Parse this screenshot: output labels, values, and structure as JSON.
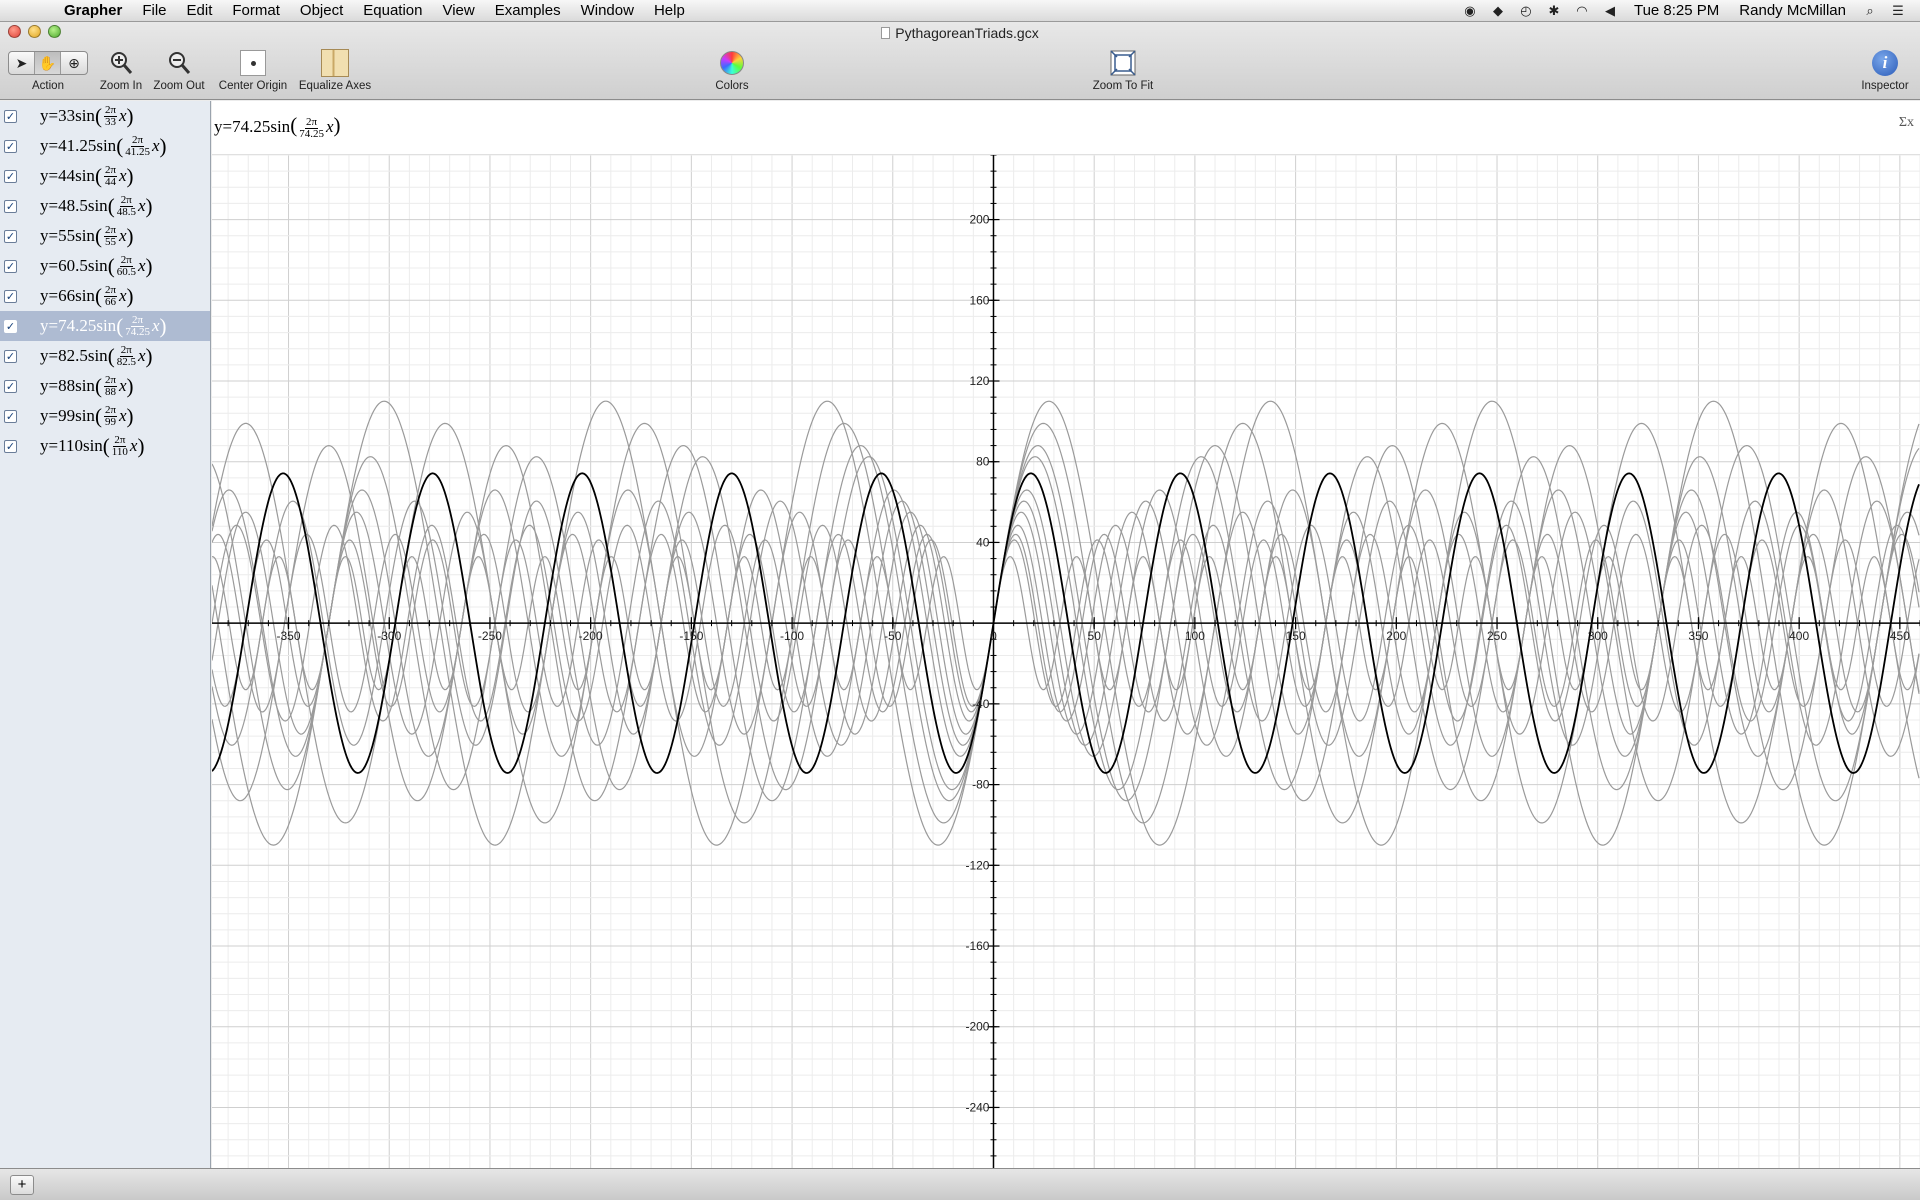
{
  "menubar": {
    "app_name": "Grapher",
    "items": [
      "File",
      "Edit",
      "Format",
      "Object",
      "Equation",
      "View",
      "Examples",
      "Window",
      "Help"
    ],
    "clock": "Tue 8:25 PM",
    "user": "Randy McMillan",
    "status_icons": [
      "creative-cloud-icon",
      "dropbox-icon",
      "time-machine-icon",
      "bluetooth-icon",
      "wifi-icon",
      "volume-icon",
      "spotlight-icon",
      "notification-center-icon"
    ]
  },
  "window": {
    "title": "PythagoreanTriads.gcx"
  },
  "toolbar": {
    "action_label": "Action",
    "zoom_in_label": "Zoom In",
    "zoom_out_label": "Zoom Out",
    "center_origin_label": "Center Origin",
    "equalize_axes_label": "Equalize Axes",
    "colors_label": "Colors",
    "zoom_to_fit_label": "Zoom To Fit",
    "inspector_label": "Inspector"
  },
  "equations": [
    {
      "prefix": "y=33sin",
      "num": "2π",
      "den": "33",
      "var": "x",
      "amplitude": 33,
      "period": 33,
      "checked": true
    },
    {
      "prefix": "y=41.25sin",
      "num": "2π",
      "den": "41.25",
      "var": "x",
      "amplitude": 41.25,
      "period": 41.25,
      "checked": true
    },
    {
      "prefix": "y=44sin",
      "num": "2π",
      "den": "44",
      "var": "x",
      "amplitude": 44,
      "period": 44,
      "checked": true
    },
    {
      "prefix": "y=48.5sin",
      "num": "2π",
      "den": "48.5",
      "var": "x",
      "amplitude": 48.5,
      "period": 48.5,
      "checked": true
    },
    {
      "prefix": "y=55sin",
      "num": "2π",
      "den": "55",
      "var": "x",
      "amplitude": 55,
      "period": 55,
      "checked": true
    },
    {
      "prefix": "y=60.5sin",
      "num": "2π",
      "den": "60.5",
      "var": "x",
      "amplitude": 60.5,
      "period": 60.5,
      "checked": true
    },
    {
      "prefix": "y=66sin",
      "num": "2π",
      "den": "66",
      "var": "x",
      "amplitude": 66,
      "period": 66,
      "checked": true
    },
    {
      "prefix": "y=74.25sin",
      "num": "2π",
      "den": "74.25",
      "var": "x",
      "amplitude": 74.25,
      "period": 74.25,
      "checked": true,
      "selected": true
    },
    {
      "prefix": "y=82.5sin",
      "num": "2π",
      "den": "82.5",
      "var": "x",
      "amplitude": 82.5,
      "period": 82.5,
      "checked": true
    },
    {
      "prefix": "y=88sin",
      "num": "2π",
      "den": "88",
      "var": "x",
      "amplitude": 88,
      "period": 88,
      "checked": true
    },
    {
      "prefix": "y=99sin",
      "num": "2π",
      "den": "99",
      "var": "x",
      "amplitude": 99,
      "period": 99,
      "checked": true
    },
    {
      "prefix": "y=110sin",
      "num": "2π",
      "den": "110",
      "var": "x",
      "amplitude": 110,
      "period": 110,
      "checked": true
    }
  ],
  "editor": {
    "prefix": "y=74.25sin",
    "num": "2π",
    "den": "74.25",
    "var": "x",
    "sigma_label": "Σx"
  },
  "chart_data": {
    "type": "line",
    "function": "y = A·sin(2πx / A)",
    "x_range": [
      -388,
      460
    ],
    "y_range": [
      -270,
      232
    ],
    "x_ticks": [
      -350,
      -300,
      -250,
      -200,
      -150,
      -100,
      -50,
      0,
      50,
      100,
      150,
      200,
      250,
      300,
      350,
      400,
      450
    ],
    "y_ticks": [
      -240,
      -200,
      -160,
      -120,
      -80,
      -40,
      40,
      80,
      120,
      160,
      200
    ],
    "grid": true,
    "highlighted_series": "y=74.25sin(2π/74.25 x)",
    "highlight_color": "#000000",
    "other_color": "#9a9a9a"
  },
  "bottombar": {
    "add_label": "+"
  }
}
